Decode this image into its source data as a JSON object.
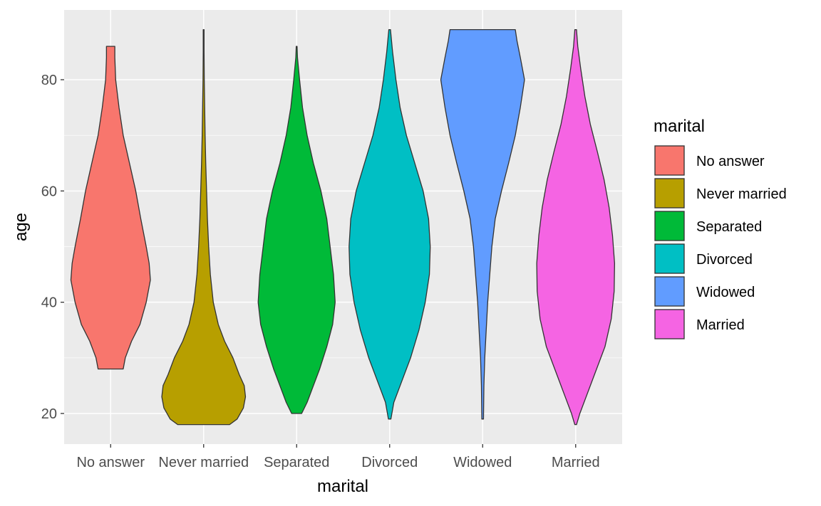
{
  "chart_data": {
    "type": "violin",
    "xlabel": "marital",
    "ylabel": "age",
    "ylim": [
      15,
      91
    ],
    "y_ticks": [
      20,
      40,
      60,
      80
    ],
    "categories": [
      "No answer",
      "Never married",
      "Separated",
      "Divorced",
      "Widowed",
      "Married"
    ],
    "legend": {
      "title": "marital",
      "placement": "right",
      "entries": [
        "No answer",
        "Never married",
        "Separated",
        "Divorced",
        "Widowed",
        "Married"
      ]
    },
    "background": "#ebebeb",
    "grid": true,
    "series": [
      {
        "category": "No answer",
        "color": "#F8766D",
        "min": 28,
        "max": 86,
        "profile": [
          [
            28,
            0.3
          ],
          [
            30,
            0.35
          ],
          [
            33,
            0.5
          ],
          [
            36,
            0.7
          ],
          [
            40,
            0.85
          ],
          [
            44,
            0.95
          ],
          [
            47,
            0.92
          ],
          [
            50,
            0.85
          ],
          [
            55,
            0.72
          ],
          [
            60,
            0.6
          ],
          [
            65,
            0.45
          ],
          [
            70,
            0.3
          ],
          [
            75,
            0.2
          ],
          [
            80,
            0.12
          ],
          [
            84,
            0.1
          ],
          [
            86,
            0.1
          ]
        ]
      },
      {
        "category": "Never married",
        "color": "#B79F00",
        "min": 18,
        "max": 89,
        "profile": [
          [
            18,
            0.62
          ],
          [
            19,
            0.8
          ],
          [
            21,
            0.95
          ],
          [
            23,
            1.0
          ],
          [
            25,
            0.97
          ],
          [
            27,
            0.85
          ],
          [
            30,
            0.7
          ],
          [
            33,
            0.5
          ],
          [
            36,
            0.35
          ],
          [
            40,
            0.23
          ],
          [
            45,
            0.16
          ],
          [
            50,
            0.12
          ],
          [
            55,
            0.09
          ],
          [
            60,
            0.07
          ],
          [
            65,
            0.05
          ],
          [
            70,
            0.035
          ],
          [
            75,
            0.025
          ],
          [
            80,
            0.015
          ],
          [
            85,
            0.01
          ],
          [
            89,
            0.01
          ]
        ]
      },
      {
        "category": "Separated",
        "color": "#00BA38",
        "min": 20,
        "max": 86,
        "profile": [
          [
            20,
            0.12
          ],
          [
            22,
            0.25
          ],
          [
            25,
            0.4
          ],
          [
            28,
            0.55
          ],
          [
            32,
            0.72
          ],
          [
            36,
            0.86
          ],
          [
            40,
            0.92
          ],
          [
            45,
            0.88
          ],
          [
            50,
            0.8
          ],
          [
            55,
            0.72
          ],
          [
            60,
            0.58
          ],
          [
            65,
            0.4
          ],
          [
            70,
            0.25
          ],
          [
            75,
            0.14
          ],
          [
            80,
            0.07
          ],
          [
            84,
            0.02
          ],
          [
            86,
            0.01
          ]
        ]
      },
      {
        "category": "Divorced",
        "color": "#00BFC4",
        "min": 19,
        "max": 89,
        "profile": [
          [
            19,
            0.03
          ],
          [
            22,
            0.1
          ],
          [
            25,
            0.25
          ],
          [
            30,
            0.5
          ],
          [
            35,
            0.7
          ],
          [
            40,
            0.85
          ],
          [
            45,
            0.95
          ],
          [
            50,
            0.97
          ],
          [
            55,
            0.93
          ],
          [
            60,
            0.8
          ],
          [
            65,
            0.6
          ],
          [
            70,
            0.4
          ],
          [
            75,
            0.25
          ],
          [
            80,
            0.15
          ],
          [
            85,
            0.07
          ],
          [
            89,
            0.02
          ]
        ]
      },
      {
        "category": "Widowed",
        "color": "#619CFF",
        "min": 19,
        "max": 89,
        "profile": [
          [
            19,
            0.02
          ],
          [
            25,
            0.03
          ],
          [
            30,
            0.05
          ],
          [
            40,
            0.12
          ],
          [
            50,
            0.22
          ],
          [
            55,
            0.3
          ],
          [
            60,
            0.45
          ],
          [
            65,
            0.62
          ],
          [
            70,
            0.78
          ],
          [
            75,
            0.9
          ],
          [
            80,
            1.0
          ],
          [
            84,
            0.9
          ],
          [
            87,
            0.82
          ],
          [
            89,
            0.78
          ]
        ]
      },
      {
        "category": "Married",
        "color": "#F564E3",
        "min": 18,
        "max": 89,
        "profile": [
          [
            18,
            0.02
          ],
          [
            20,
            0.1
          ],
          [
            23,
            0.25
          ],
          [
            27,
            0.45
          ],
          [
            32,
            0.7
          ],
          [
            37,
            0.85
          ],
          [
            42,
            0.92
          ],
          [
            47,
            0.93
          ],
          [
            52,
            0.88
          ],
          [
            57,
            0.8
          ],
          [
            62,
            0.68
          ],
          [
            67,
            0.52
          ],
          [
            72,
            0.35
          ],
          [
            77,
            0.22
          ],
          [
            82,
            0.12
          ],
          [
            86,
            0.05
          ],
          [
            89,
            0.02
          ]
        ]
      }
    ]
  }
}
